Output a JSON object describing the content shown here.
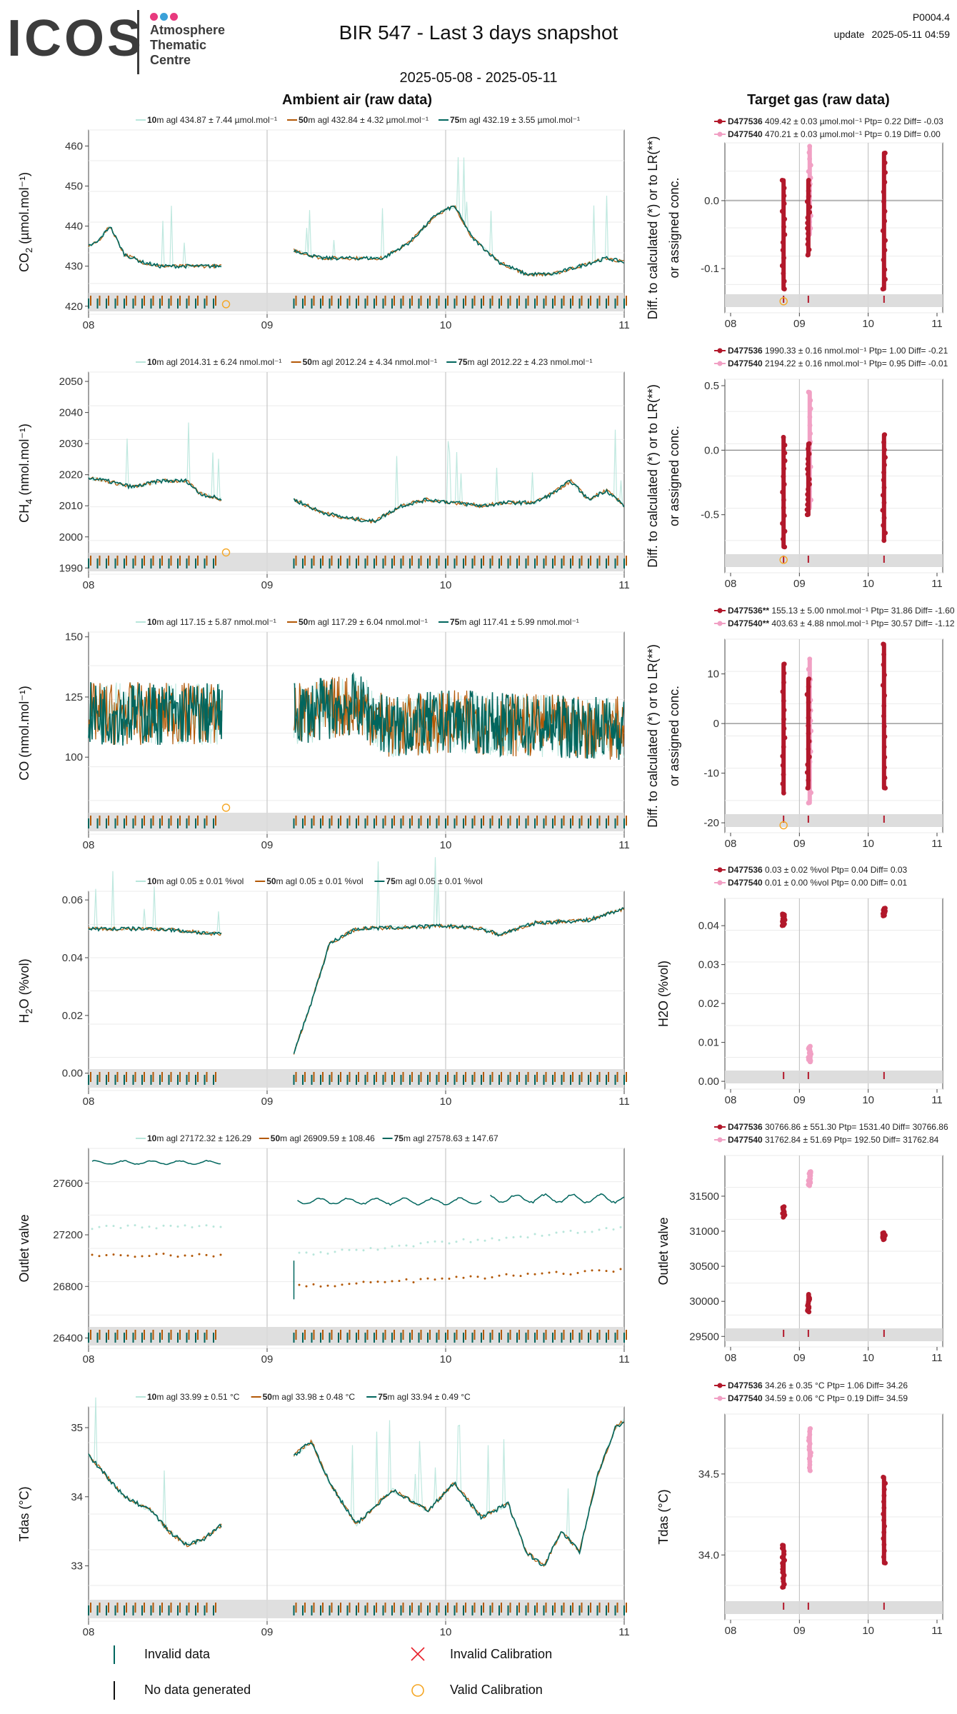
{
  "header": {
    "logo_text": "ICOS",
    "logo_sub1": "Atmosphere",
    "logo_sub2": "Thematic",
    "logo_sub3": "Centre",
    "logo_dot_colors": [
      "#e83a7e",
      "#3aa1d8",
      "#e83a7e"
    ],
    "title": "BIR 547 - Last 3 days snapshot",
    "date_range": "2025-05-08 - 2025-05-11",
    "code": "P0004.4",
    "update_label": "update",
    "update_time": "2025-05-11 04:59"
  },
  "colors": {
    "h10": "#b8e6db",
    "h50": "#b35806",
    "h75": "#01665e",
    "t1": "#b2182b",
    "t2": "#f1a0c4",
    "valid_cal": "#f5a623",
    "invalid_cal": "#e8212b",
    "shade": "#d9d9d9",
    "grid": "#ebebeb",
    "vline": "#bbbbbb"
  },
  "sections": {
    "ambient_title": "Ambient air (raw data)",
    "target_title": "Target gas (raw data)"
  },
  "x_ticks": [
    "08",
    "09",
    "10",
    "11"
  ],
  "chart_data": [
    {
      "id": "co2",
      "type": "line",
      "ylabel": "CO",
      "ylabel_sub": "2",
      "ylabel_unit": " (µmol.mol⁻¹)",
      "ylim": [
        418,
        464
      ],
      "yticks": [
        420,
        430,
        440,
        450,
        460
      ],
      "x": [
        "2025-05-08",
        "2025-05-11"
      ],
      "legend": [
        {
          "h": "10",
          "text": "m agl 434.87 ± 7.44 µmol.mol⁻¹"
        },
        {
          "h": "50",
          "text": "m agl 432.84 ± 4.32 µmol.mol⁻¹"
        },
        {
          "h": "75",
          "text": "m agl 432.19 ± 3.55 µmol.mol⁻¹"
        }
      ],
      "series": [
        {
          "name": "10",
          "mean": 434.87,
          "sd": 7.44
        },
        {
          "name": "50",
          "mean": 432.84,
          "sd": 4.32
        },
        {
          "name": "75",
          "mean": 432.19,
          "sd": 3.55
        }
      ],
      "key_points": [
        [
          0,
          435
        ],
        [
          0.05,
          436
        ],
        [
          0.12,
          440
        ],
        [
          0.2,
          433
        ],
        [
          0.3,
          431
        ],
        [
          0.4,
          430
        ],
        [
          0.75,
          430
        ],
        [
          1.15,
          434
        ],
        [
          1.3,
          432
        ],
        [
          1.5,
          432
        ],
        [
          1.65,
          432
        ],
        [
          1.8,
          436
        ],
        [
          1.95,
          443
        ],
        [
          2.05,
          445
        ],
        [
          2.15,
          437
        ],
        [
          2.3,
          431
        ],
        [
          2.45,
          428
        ],
        [
          2.6,
          428
        ],
        [
          2.75,
          430
        ],
        [
          2.9,
          432
        ],
        [
          3.0,
          431
        ]
      ],
      "valid_cal": [
        0.77,
        420.5
      ],
      "target": {
        "ylabel": "Diff. to calculated (*) or to LR(**)",
        "ylabel2": "or assigned conc.",
        "ylim": [
          -0.165,
          0.085
        ],
        "yticks": [
          0.0,
          -0.1
        ],
        "yticklabels": [
          "0.0",
          "-0.1"
        ],
        "hline": 0,
        "legend": [
          {
            "id": "D477536",
            "text": " 409.42 ± 0.03 µmol.mol⁻¹ Ptp= 0.22 Diff= -0.03"
          },
          {
            "id": "D477540",
            "text": " 470.21 ± 0.03 µmol.mol⁻¹ Ptp= 0.19 Diff= 0.00"
          }
        ],
        "clusters": [
          {
            "t": 1,
            "x": 0.77,
            "ymin": -0.13,
            "ymax": 0.03
          },
          {
            "t": 2,
            "x": 1.15,
            "ymin": -0.05,
            "ymax": 0.08
          },
          {
            "t": 1,
            "x": 1.13,
            "ymin": -0.08,
            "ymax": 0.03
          },
          {
            "t": 1,
            "x": 2.23,
            "ymin": -0.13,
            "ymax": 0.07
          }
        ],
        "valid_cal": [
          0.77,
          -0.148
        ]
      }
    },
    {
      "id": "ch4",
      "type": "line",
      "ylabel": "CH",
      "ylabel_sub": "4",
      "ylabel_unit": " (nmol.mol⁻¹)",
      "ylim": [
        1988,
        2053
      ],
      "yticks": [
        1990,
        2000,
        2010,
        2020,
        2030,
        2040,
        2050
      ],
      "x": [
        "2025-05-08",
        "2025-05-11"
      ],
      "legend": [
        {
          "h": "10",
          "text": "m agl 2014.31 ± 6.24 nmol.mol⁻¹"
        },
        {
          "h": "50",
          "text": "m agl 2012.24 ± 4.34 nmol.mol⁻¹"
        },
        {
          "h": "75",
          "text": "m agl 2012.22 ± 4.23 nmol.mol⁻¹"
        }
      ],
      "series": [
        {
          "name": "10",
          "mean": 2014.31,
          "sd": 6.24
        },
        {
          "name": "50",
          "mean": 2012.24,
          "sd": 4.34
        },
        {
          "name": "75",
          "mean": 2012.22,
          "sd": 4.23
        }
      ],
      "key_points": [
        [
          0,
          2019
        ],
        [
          0.1,
          2018
        ],
        [
          0.25,
          2016
        ],
        [
          0.4,
          2018
        ],
        [
          0.55,
          2018
        ],
        [
          0.62,
          2014
        ],
        [
          0.75,
          2012
        ],
        [
          1.15,
          2012
        ],
        [
          1.3,
          2008
        ],
        [
          1.45,
          2006
        ],
        [
          1.6,
          2005
        ],
        [
          1.75,
          2010
        ],
        [
          1.9,
          2012
        ],
        [
          2.05,
          2011
        ],
        [
          2.2,
          2010
        ],
        [
          2.35,
          2011
        ],
        [
          2.5,
          2011
        ],
        [
          2.6,
          2014
        ],
        [
          2.7,
          2018
        ],
        [
          2.8,
          2012
        ],
        [
          2.9,
          2015
        ],
        [
          3.0,
          2010
        ]
      ],
      "valid_cal": [
        0.77,
        1995
      ],
      "target": {
        "ylabel": "Diff. to calculated (*) or to LR(**)",
        "ylabel2": "or assigned conc.",
        "ylim": [
          -0.95,
          0.55
        ],
        "yticks": [
          0.5,
          0.0,
          -0.5
        ],
        "yticklabels": [
          "0.5",
          "0.0",
          "-0.5"
        ],
        "hline": 0,
        "legend": [
          {
            "id": "D477536",
            "text": " 1990.33 ± 0.16 nmol.mol⁻¹ Ptp= 1.00 Diff= -0.21"
          },
          {
            "id": "D477540",
            "text": " 2194.22 ± 0.16 nmol.mol⁻¹ Ptp= 0.95 Diff= -0.01"
          }
        ],
        "clusters": [
          {
            "t": 1,
            "x": 0.77,
            "ymin": -0.75,
            "ymax": 0.1
          },
          {
            "t": 2,
            "x": 1.15,
            "ymin": -0.45,
            "ymax": 0.45
          },
          {
            "t": 1,
            "x": 1.13,
            "ymin": -0.5,
            "ymax": 0.05
          },
          {
            "t": 1,
            "x": 2.23,
            "ymin": -0.7,
            "ymax": 0.12
          }
        ],
        "valid_cal": [
          0.77,
          -0.85
        ]
      }
    },
    {
      "id": "co",
      "type": "line",
      "ylabel": "CO",
      "ylabel_sub": "",
      "ylabel_unit": " (nmol.mol⁻¹)",
      "ylim": [
        68,
        152
      ],
      "yticks": [
        100,
        125,
        150
      ],
      "x": [
        "2025-05-08",
        "2025-05-11"
      ],
      "legend": [
        {
          "h": "10",
          "text": "m agl 117.15 ± 5.87 nmol.mol⁻¹"
        },
        {
          "h": "50",
          "text": "m agl 117.29 ± 6.04 nmol.mol⁻¹"
        },
        {
          "h": "75",
          "text": "m agl 117.41 ± 5.99 nmol.mol⁻¹"
        }
      ],
      "series": [
        {
          "name": "10",
          "mean": 117.15,
          "sd": 5.87
        },
        {
          "name": "50",
          "mean": 117.29,
          "sd": 6.04
        },
        {
          "name": "75",
          "mean": 117.41,
          "sd": 5.99
        }
      ],
      "key_points": [
        [
          0,
          118
        ],
        [
          0.75,
          118
        ],
        [
          1.15,
          118
        ],
        [
          1.5,
          122
        ],
        [
          1.7,
          112
        ],
        [
          2.0,
          115
        ],
        [
          2.5,
          113
        ],
        [
          3.0,
          112
        ]
      ],
      "noise": 22,
      "valid_cal": [
        0.77,
        79
      ],
      "target": {
        "ylabel": "Diff. to calculated (*) or to LR(**)",
        "ylabel2": "or assigned conc.",
        "ylim": [
          -22,
          17
        ],
        "yticks": [
          10,
          0,
          -10,
          -20
        ],
        "yticklabels": [
          "10",
          "0",
          "-10",
          "-20"
        ],
        "hline": 0,
        "legend": [
          {
            "id": "D477536**",
            "text": " 155.13 ± 5.00 nmol.mol⁻¹ Ptp= 31.86 Diff= -1.60"
          },
          {
            "id": "D477540**",
            "text": " 403.63 ± 4.88 nmol.mol⁻¹ Ptp= 30.57 Diff= -1.12"
          }
        ],
        "clusters": [
          {
            "t": 1,
            "x": 0.77,
            "ymin": -14,
            "ymax": 12
          },
          {
            "t": 2,
            "x": 1.15,
            "ymin": -16,
            "ymax": 13
          },
          {
            "t": 1,
            "x": 1.13,
            "ymin": -13,
            "ymax": 9
          },
          {
            "t": 1,
            "x": 2.23,
            "ymin": -13,
            "ymax": 16
          }
        ],
        "valid_cal": [
          0.77,
          -20.5
        ]
      }
    },
    {
      "id": "h2o",
      "type": "line",
      "ylabel": "H",
      "ylabel_sub": "2",
      "ylabel_unit": "O (%vol)",
      "ylim": [
        -0.006,
        0.063
      ],
      "yticks": [
        0.0,
        0.02,
        0.04,
        0.06
      ],
      "yticklabels": [
        "0.00",
        "0.02",
        "0.04",
        "0.06"
      ],
      "x": [
        "2025-05-08",
        "2025-05-11"
      ],
      "legend": [
        {
          "h": "10",
          "text": "m agl 0.05 ± 0.01 %vol"
        },
        {
          "h": "50",
          "text": "m agl 0.05 ± 0.01 %vol"
        },
        {
          "h": "75",
          "text": "m agl 0.05 ± 0.01 %vol"
        }
      ],
      "series": [
        {
          "name": "10",
          "mean": 0.05,
          "sd": 0.01
        },
        {
          "name": "50",
          "mean": 0.05,
          "sd": 0.01
        },
        {
          "name": "75",
          "mean": 0.05,
          "sd": 0.01
        }
      ],
      "key_points": [
        [
          0,
          0.05
        ],
        [
          0.4,
          0.05
        ],
        [
          0.75,
          0.048
        ],
        [
          1.15,
          0.007
        ],
        [
          1.25,
          0.025
        ],
        [
          1.35,
          0.045
        ],
        [
          1.5,
          0.05
        ],
        [
          2.0,
          0.051
        ],
        [
          2.2,
          0.05
        ],
        [
          2.3,
          0.048
        ],
        [
          2.5,
          0.052
        ],
        [
          2.8,
          0.053
        ],
        [
          3.0,
          0.057
        ]
      ],
      "target": {
        "ylabel": "H2O (%vol)",
        "ylabel2": "",
        "ylim": [
          -0.002,
          0.047
        ],
        "yticks": [
          0.0,
          0.01,
          0.02,
          0.03,
          0.04
        ],
        "yticklabels": [
          "0.00",
          "0.01",
          "0.02",
          "0.03",
          "0.04"
        ],
        "legend": [
          {
            "id": "D477536",
            "text": " 0.03 ± 0.02 %vol Ptp= 0.04 Diff= 0.03"
          },
          {
            "id": "D477540",
            "text": " 0.01 ± 0.00 %vol Ptp= 0.00 Diff= 0.01"
          }
        ],
        "clusters": [
          {
            "t": 1,
            "x": 0.77,
            "ymin": 0.04,
            "ymax": 0.043
          },
          {
            "t": 2,
            "x": 1.15,
            "ymin": 0.005,
            "ymax": 0.009
          },
          {
            "t": 1,
            "x": 2.23,
            "ymin": 0.0425,
            "ymax": 0.0445
          }
        ]
      }
    },
    {
      "id": "outlet",
      "type": "line",
      "ylabel": "Outlet valve",
      "ylabel_sub": "",
      "ylabel_unit": "",
      "ylim": [
        26320,
        27870
      ],
      "yticks": [
        26400,
        26800,
        27200,
        27600
      ],
      "x": [
        "2025-05-08",
        "2025-05-11"
      ],
      "legend": [
        {
          "h": "10",
          "text": "m agl 27172.32 ± 126.29"
        },
        {
          "h": "50",
          "text": "m agl 26909.59 ± 108.46"
        },
        {
          "h": "75",
          "text": "m agl 27578.63 ± 147.67"
        }
      ],
      "series": [
        {
          "name": "10",
          "mean": 27172.32,
          "sd": 126.29
        },
        {
          "name": "50",
          "mean": 26909.59,
          "sd": 108.46
        },
        {
          "name": "75",
          "mean": 27578.63,
          "sd": 147.67
        }
      ],
      "target": {
        "ylabel": "Outlet valve",
        "ylabel2": "",
        "ylim": [
          29350,
          32080
        ],
        "yticks": [
          29500,
          30000,
          30500,
          31000,
          31500
        ],
        "yticklabels": [
          "29500",
          "30000",
          "30500",
          "31000",
          "31500"
        ],
        "legend": [
          {
            "id": "D477536",
            "text": " 30766.86 ± 551.30  Ptp= 1531.40 Diff= 30766.86"
          },
          {
            "id": "D477540",
            "text": " 31762.84 ± 51.69  Ptp= 192.50 Diff= 31762.84"
          }
        ],
        "clusters": [
          {
            "t": 1,
            "x": 0.77,
            "ymin": 31200,
            "ymax": 31350
          },
          {
            "t": 2,
            "x": 1.15,
            "ymin": 31650,
            "ymax": 31850
          },
          {
            "t": 1,
            "x": 1.13,
            "ymin": 29850,
            "ymax": 30100
          },
          {
            "t": 1,
            "x": 2.23,
            "ymin": 30880,
            "ymax": 30980
          }
        ]
      }
    },
    {
      "id": "tdas",
      "type": "line",
      "ylabel": "Tdas (°C)",
      "ylabel_sub": "",
      "ylabel_unit": "",
      "ylim": [
        32.2,
        35.3
      ],
      "yticks": [
        33,
        34,
        35
      ],
      "x": [
        "2025-05-08",
        "2025-05-11"
      ],
      "legend": [
        {
          "h": "10",
          "text": "m agl 33.99 ± 0.51 °C"
        },
        {
          "h": "50",
          "text": "m agl 33.98 ± 0.48 °C"
        },
        {
          "h": "75",
          "text": "m agl 33.94 ± 0.49 °C"
        }
      ],
      "series": [
        {
          "name": "10",
          "mean": 33.99,
          "sd": 0.51
        },
        {
          "name": "50",
          "mean": 33.98,
          "sd": 0.48
        },
        {
          "name": "75",
          "mean": 33.94,
          "sd": 0.49
        }
      ],
      "key_points": [
        [
          0,
          34.6
        ],
        [
          0.1,
          34.3
        ],
        [
          0.2,
          34.0
        ],
        [
          0.35,
          33.8
        ],
        [
          0.45,
          33.5
        ],
        [
          0.55,
          33.3
        ],
        [
          0.65,
          33.4
        ],
        [
          0.75,
          33.6
        ],
        [
          1.15,
          34.6
        ],
        [
          1.25,
          34.8
        ],
        [
          1.35,
          34.2
        ],
        [
          1.5,
          33.6
        ],
        [
          1.7,
          34.1
        ],
        [
          1.9,
          33.8
        ],
        [
          2.05,
          34.2
        ],
        [
          2.2,
          33.7
        ],
        [
          2.35,
          33.9
        ],
        [
          2.45,
          33.2
        ],
        [
          2.55,
          33.0
        ],
        [
          2.65,
          33.5
        ],
        [
          2.75,
          33.2
        ],
        [
          2.85,
          34.3
        ],
        [
          2.95,
          35.0
        ],
        [
          3.0,
          35.1
        ]
      ],
      "target": {
        "ylabel": "Tdas (°C)",
        "ylabel2": "",
        "ylim": [
          33.6,
          34.87
        ],
        "yticks": [
          34.0,
          34.5
        ],
        "yticklabels": [
          "34.0",
          "34.5"
        ],
        "legend": [
          {
            "id": "D477536",
            "text": " 34.26 ± 0.35 °C Ptp= 1.06 Diff= 34.26"
          },
          {
            "id": "D477540",
            "text": " 34.59 ± 0.06 °C Ptp= 0.19 Diff= 34.59"
          }
        ],
        "clusters": [
          {
            "t": 1,
            "x": 0.77,
            "ymin": 33.8,
            "ymax": 34.06
          },
          {
            "t": 2,
            "x": 1.15,
            "ymin": 34.52,
            "ymax": 34.78
          },
          {
            "t": 1,
            "x": 2.23,
            "ymin": 33.95,
            "ymax": 34.48
          }
        ]
      }
    }
  ],
  "legend_bottom": [
    {
      "id": "invalid-data",
      "label": "Invalid data"
    },
    {
      "id": "invalid-cal",
      "label": "Invalid Calibration"
    },
    {
      "id": "no-data",
      "label": "No data generated"
    },
    {
      "id": "valid-cal",
      "label": "Valid Calibration"
    }
  ]
}
